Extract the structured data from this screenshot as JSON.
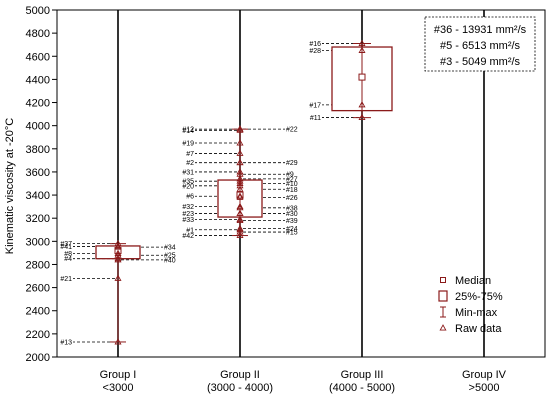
{
  "chart_data": {
    "type": "box",
    "ylabel": "Kinematic viscosity at -20°C",
    "ylim": [
      2000,
      5000
    ],
    "yticks": [
      2000,
      2200,
      2400,
      2600,
      2800,
      3000,
      3200,
      3400,
      3600,
      3800,
      4000,
      4200,
      4400,
      4600,
      4800,
      5000
    ],
    "groups": [
      {
        "line1": "Group I",
        "line2": "<3000",
        "box": {
          "q1": 2850,
          "q3": 2960,
          "median": 2920,
          "min": 2130,
          "max": 2980
        },
        "points": [
          {
            "id": "#37",
            "value": 2980,
            "side": "left"
          },
          {
            "id": "#41",
            "value": 2955,
            "side": "left"
          },
          {
            "id": "#8",
            "value": 2895,
            "side": "left"
          },
          {
            "id": "#4",
            "value": 2850,
            "side": "left"
          },
          {
            "id": "#21",
            "value": 2680,
            "side": "left"
          },
          {
            "id": "#13",
            "value": 2130,
            "side": "left"
          },
          {
            "id": "#34",
            "value": 2950,
            "side": "right"
          },
          {
            "id": "#25",
            "value": 2880,
            "side": "right"
          },
          {
            "id": "#40",
            "value": 2840,
            "side": "right"
          }
        ]
      },
      {
        "line1": "Group II",
        "line2": "(3000 - 4000)",
        "box": {
          "q1": 3210,
          "q3": 3530,
          "median": 3400,
          "min": 3050,
          "max": 3970
        },
        "points": [
          {
            "id": "#12",
            "value": 3970,
            "side": "left"
          },
          {
            "id": "#14",
            "value": 3960,
            "side": "left"
          },
          {
            "id": "#19",
            "value": 3850,
            "side": "left"
          },
          {
            "id": "#7",
            "value": 3760,
            "side": "left"
          },
          {
            "id": "#2",
            "value": 3680,
            "side": "left"
          },
          {
            "id": "#31",
            "value": 3600,
            "side": "left"
          },
          {
            "id": "#35",
            "value": 3520,
            "side": "left"
          },
          {
            "id": "#20",
            "value": 3480,
            "side": "left"
          },
          {
            "id": "#6",
            "value": 3390,
            "side": "left"
          },
          {
            "id": "#32",
            "value": 3300,
            "side": "left"
          },
          {
            "id": "#23",
            "value": 3240,
            "side": "left"
          },
          {
            "id": "#33",
            "value": 3190,
            "side": "left"
          },
          {
            "id": "#1",
            "value": 3100,
            "side": "left"
          },
          {
            "id": "#42",
            "value": 3050,
            "side": "left"
          },
          {
            "id": "#22",
            "value": 3970,
            "side": "right"
          },
          {
            "id": "#29",
            "value": 3680,
            "side": "right"
          },
          {
            "id": "#9",
            "value": 3580,
            "side": "right"
          },
          {
            "id": "#27",
            "value": 3540,
            "side": "right"
          },
          {
            "id": "#10",
            "value": 3500,
            "side": "right"
          },
          {
            "id": "#18",
            "value": 3450,
            "side": "right"
          },
          {
            "id": "#26",
            "value": 3380,
            "side": "right"
          },
          {
            "id": "#38",
            "value": 3290,
            "side": "right"
          },
          {
            "id": "#30",
            "value": 3240,
            "side": "right"
          },
          {
            "id": "#39",
            "value": 3180,
            "side": "right"
          },
          {
            "id": "#24",
            "value": 3110,
            "side": "right"
          },
          {
            "id": "#15",
            "value": 3080,
            "side": "right"
          }
        ]
      },
      {
        "line1": "Group III",
        "line2": "(4000 - 5000)",
        "box": {
          "q1": 4130,
          "q3": 4680,
          "median": 4420,
          "min": 4070,
          "max": 4710
        },
        "points": [
          {
            "id": "#16",
            "value": 4710,
            "side": "left"
          },
          {
            "id": "#28",
            "value": 4650,
            "side": "left"
          },
          {
            "id": "#17",
            "value": 4180,
            "side": "left"
          },
          {
            "id": "#11",
            "value": 4070,
            "side": "left"
          }
        ]
      },
      {
        "line1": "Group IV",
        "line2": ">5000",
        "box": null,
        "points": []
      }
    ],
    "annotation": [
      "#36 - 13931 mm²/s",
      "#5 - 6513 mm²/s",
      "#3 - 5049 mm²/s"
    ],
    "legend": {
      "placement": "bottom-right",
      "items": [
        {
          "label": "Median",
          "symbol": "small-square"
        },
        {
          "label": "25%-75%",
          "symbol": "box"
        },
        {
          "label": "Min-max",
          "symbol": "whisker"
        },
        {
          "label": "Raw data",
          "symbol": "triangle"
        }
      ]
    },
    "colors": {
      "series": "#8b1a1a",
      "axis": "#000000",
      "guide": "#000000"
    }
  }
}
